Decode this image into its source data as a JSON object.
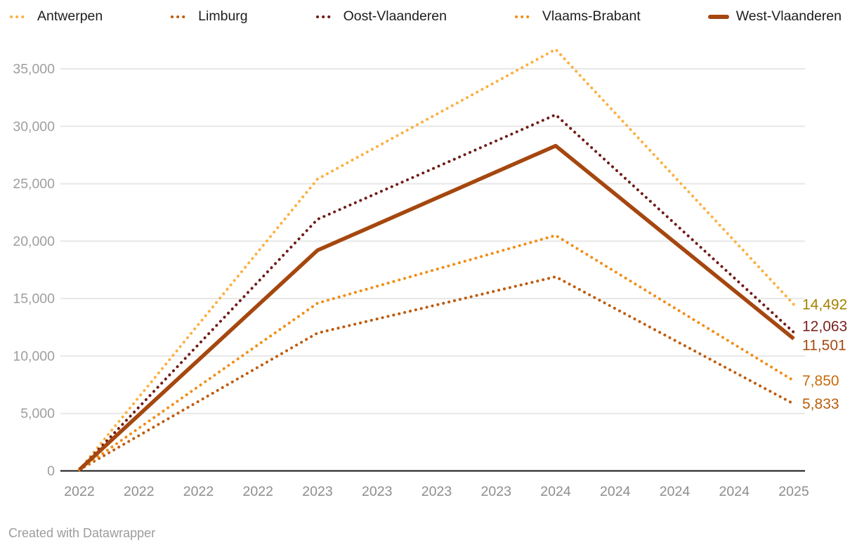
{
  "footer": {
    "text": "Created with Datawrapper"
  },
  "chart_data": {
    "type": "line",
    "title": "",
    "xlabel": "",
    "ylabel": "",
    "legend_position": "top",
    "grid": true,
    "x_tick_labels": [
      "2022",
      "2022",
      "2022",
      "2022",
      "2023",
      "2023",
      "2023",
      "2023",
      "2024",
      "2024",
      "2024",
      "2024",
      "2025"
    ],
    "y_ticks": [
      0,
      5000,
      10000,
      15000,
      20000,
      25000,
      30000,
      35000
    ],
    "y_tick_labels": [
      "0",
      "5,000",
      "10,000",
      "15,000",
      "20,000",
      "25,000",
      "30,000",
      "35,000"
    ],
    "ylim": [
      0,
      37000
    ],
    "anchor_indices": [
      0,
      4,
      8,
      12
    ],
    "series": [
      {
        "name": "Antwerpen",
        "style": "dotted",
        "color": "#FBB040",
        "label_color": "#A38200",
        "values": [
          100,
          25400,
          36700,
          14492
        ],
        "end_label": "14,492"
      },
      {
        "name": "Limburg",
        "style": "dotted",
        "color": "#BF5B0D",
        "label_color": "#BA5E08",
        "values": [
          100,
          12000,
          16900,
          5833
        ],
        "end_label": "5,833"
      },
      {
        "name": "Oost-Vlaanderen",
        "style": "dotted",
        "color": "#701B15",
        "label_color": "#7B2121",
        "values": [
          100,
          21900,
          31000,
          12063
        ],
        "end_label": "12,063"
      },
      {
        "name": "Vlaams-Brabant",
        "style": "dotted",
        "color": "#F18D15",
        "label_color": "#C96B09",
        "values": [
          100,
          14600,
          20500,
          7850
        ],
        "end_label": "7,850"
      },
      {
        "name": "West-Vlaanderen",
        "style": "solid",
        "color": "#A5470F",
        "label_color": "#A54A12",
        "values": [
          100,
          19200,
          28300,
          11501
        ],
        "end_label": "11,501"
      }
    ],
    "colors": {
      "gridline": "#e7e7e7",
      "axis_line": "#161616",
      "y_tick_text": "#9e9e9e",
      "x_tick_text": "#8e8e8e",
      "legend_text": "#1d1d1d"
    }
  }
}
